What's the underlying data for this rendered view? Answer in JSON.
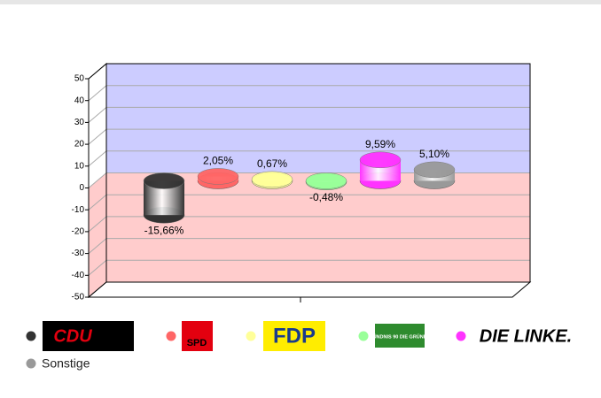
{
  "chart_data": {
    "type": "bar",
    "categories": [
      "CDU",
      "SPD",
      "FDP",
      "BÜNDNIS 90 DIE GRÜNEN",
      "DIE LINKE.",
      "Sonstige"
    ],
    "values": [
      -15.66,
      2.05,
      0.67,
      -0.48,
      9.59,
      5.1
    ],
    "value_labels": [
      "-15,66%",
      "2,05%",
      "0,67%",
      "-0,48%",
      "9,59%",
      "5,10%"
    ],
    "colors": [
      "#333333",
      "#ff6666",
      "#ffff99",
      "#99ff99",
      "#ff33ff",
      "#999999"
    ],
    "ylim": [
      -50,
      50
    ],
    "yticks": [
      50,
      40,
      30,
      20,
      10,
      0,
      -10,
      -20,
      -30,
      -40,
      -50
    ],
    "grid": true
  }
}
